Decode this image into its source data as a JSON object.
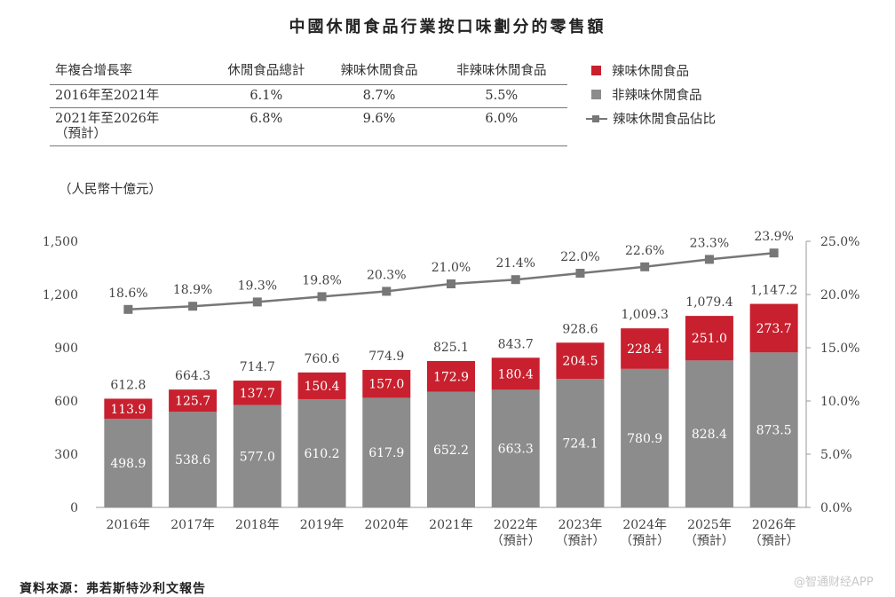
{
  "title": "中國休閒食品行業按口味劃分的零售額",
  "cagr_table": {
    "headers": [
      "年複合增長率",
      "休閒食品總計",
      "辣味休閒食品",
      "非辣味休閒食品"
    ],
    "rows": [
      {
        "period": "2016年至2021年",
        "note": "",
        "total": "6.1%",
        "spicy": "8.7%",
        "non_spicy": "5.5%"
      },
      {
        "period": "2021年至2026年",
        "note": "（預計）",
        "total": "6.8%",
        "spicy": "9.6%",
        "non_spicy": "6.0%"
      }
    ]
  },
  "unit_label": "（人民幣十億元）",
  "source": "資料來源：弗若斯特沙利文報告",
  "watermark": "@智通财经APP",
  "chart_data": {
    "type": "bar",
    "stacked": true,
    "categories": [
      [
        "2016年"
      ],
      [
        "2017年"
      ],
      [
        "2018年"
      ],
      [
        "2019年"
      ],
      [
        "2020年"
      ],
      [
        "2021年"
      ],
      [
        "2022年",
        "（預計）"
      ],
      [
        "2023年",
        "（預計）"
      ],
      [
        "2024年",
        "（預計）"
      ],
      [
        "2025年",
        "（預計）"
      ],
      [
        "2026年",
        "（預計）"
      ]
    ],
    "series": [
      {
        "name": "非辣味休閒食品",
        "color": "#8c8c8c",
        "values": [
          498.9,
          538.6,
          577.0,
          610.2,
          617.9,
          652.2,
          663.3,
          724.1,
          780.9,
          828.4,
          873.5
        ],
        "labels": [
          "498.9",
          "538.6",
          "577.0",
          "610.2",
          "617.9",
          "652.2",
          "663.3",
          "724.1",
          "780.9",
          "828.4",
          "873.5"
        ]
      },
      {
        "name": "辣味休閒食品",
        "color": "#c8202e",
        "values": [
          113.9,
          125.7,
          137.7,
          150.4,
          157.0,
          172.9,
          180.4,
          204.5,
          228.4,
          251.0,
          273.7
        ],
        "labels": [
          "113.9",
          "125.7",
          "137.7",
          "150.4",
          "157.0",
          "172.9",
          "180.4",
          "204.5",
          "228.4",
          "251.0",
          "273.7"
        ]
      }
    ],
    "totals": [
      612.8,
      664.3,
      714.7,
      760.6,
      774.9,
      825.1,
      843.7,
      928.6,
      1009.3,
      1079.4,
      1147.2
    ],
    "total_labels": [
      "612.8",
      "664.3",
      "714.7",
      "760.6",
      "774.9",
      "825.1",
      "843.7",
      "928.6",
      "1,009.3",
      "1,079.4",
      "1,147.2"
    ],
    "line_series": {
      "name": "辣味休閒食品佔比",
      "color": "#777777",
      "axis": "right",
      "values": [
        18.6,
        18.9,
        19.3,
        19.8,
        20.3,
        21.0,
        21.4,
        22.0,
        22.6,
        23.3,
        23.9
      ],
      "labels": [
        "18.6%",
        "18.9%",
        "19.3%",
        "19.8%",
        "20.3%",
        "21.0%",
        "21.4%",
        "22.0%",
        "22.6%",
        "23.3%",
        "23.9%"
      ]
    },
    "y_left": {
      "lim": [
        0,
        1500
      ],
      "ticks": [
        0,
        300,
        600,
        900,
        1200,
        1500
      ],
      "tick_labels": [
        "0",
        "300",
        "600",
        "900",
        "1,200",
        "1,500"
      ]
    },
    "y_right": {
      "lim": [
        0,
        25
      ],
      "ticks": [
        0,
        5,
        10,
        15,
        20,
        25
      ],
      "tick_labels": [
        "0.0%",
        "5.0%",
        "10.0%",
        "15.0%",
        "20.0%",
        "25.0%"
      ]
    },
    "legend": [
      {
        "label": "辣味休閒食品",
        "kind": "square",
        "color": "#c8202e"
      },
      {
        "label": "非辣味休閒食品",
        "kind": "square",
        "color": "#8c8c8c"
      },
      {
        "label": "辣味休閒食品佔比",
        "kind": "line",
        "color": "#777777"
      }
    ],
    "legend_position": "top-right",
    "grid": false
  }
}
